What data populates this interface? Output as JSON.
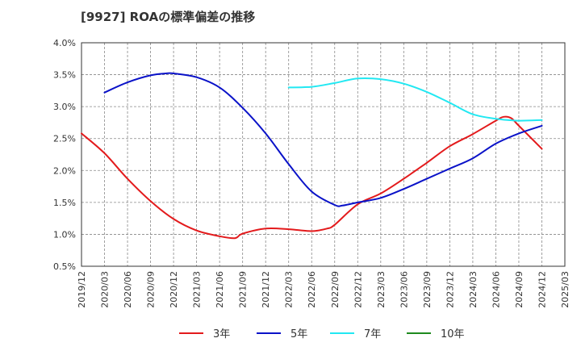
{
  "chart_data": {
    "type": "line",
    "title": "[9927]  ROAの標準偏差の推移",
    "xlabel": "",
    "ylabel": "",
    "ylim": [
      0.5,
      4.0
    ],
    "yticks": [
      "0.5%",
      "1.0%",
      "1.5%",
      "2.0%",
      "2.5%",
      "3.0%",
      "3.5%",
      "4.0%"
    ],
    "ytick_values": [
      0.5,
      1.0,
      1.5,
      2.0,
      2.5,
      3.0,
      3.5,
      4.0
    ],
    "xticks": [
      "2019/12",
      "2020/03",
      "2020/06",
      "2020/09",
      "2020/12",
      "2021/03",
      "2021/06",
      "2021/09",
      "2021/12",
      "2022/03",
      "2022/06",
      "2022/09",
      "2022/12",
      "2023/03",
      "2023/06",
      "2023/09",
      "2023/12",
      "2024/03",
      "2024/06",
      "2024/09",
      "2024/12",
      "2025/03"
    ],
    "grid": true,
    "legend_position": "bottom",
    "series": [
      {
        "name": "3年",
        "color": "#e31a1c",
        "points": [
          [
            "2019/12",
            2.58
          ],
          [
            "2020/03",
            2.27
          ],
          [
            "2020/06",
            1.87
          ],
          [
            "2020/09",
            1.52
          ],
          [
            "2020/12",
            1.24
          ],
          [
            "2021/03",
            1.06
          ],
          [
            "2021/06",
            0.97
          ],
          [
            "2021/08",
            0.94
          ],
          [
            "2021/09",
            1.01
          ],
          [
            "2021/12",
            1.09
          ],
          [
            "2022/03",
            1.08
          ],
          [
            "2022/06",
            1.05
          ],
          [
            "2022/08",
            1.09
          ],
          [
            "2022/09",
            1.15
          ],
          [
            "2022/12",
            1.47
          ],
          [
            "2023/03",
            1.64
          ],
          [
            "2023/06",
            1.87
          ],
          [
            "2023/09",
            2.12
          ],
          [
            "2023/12",
            2.38
          ],
          [
            "2024/03",
            2.57
          ],
          [
            "2024/06",
            2.78
          ],
          [
            "2024/07",
            2.84
          ],
          [
            "2024/08",
            2.82
          ],
          [
            "2024/09",
            2.7
          ],
          [
            "2024/12",
            2.34
          ]
        ]
      },
      {
        "name": "5年",
        "color": "#0a12c8",
        "points": [
          [
            "2020/03",
            3.22
          ],
          [
            "2020/06",
            3.38
          ],
          [
            "2020/09",
            3.49
          ],
          [
            "2020/11",
            3.52
          ],
          [
            "2020/12",
            3.52
          ],
          [
            "2021/03",
            3.46
          ],
          [
            "2021/06",
            3.3
          ],
          [
            "2021/09",
            2.98
          ],
          [
            "2021/12",
            2.58
          ],
          [
            "2022/03",
            2.1
          ],
          [
            "2022/06",
            1.67
          ],
          [
            "2022/09",
            1.46
          ],
          [
            "2022/10",
            1.45
          ],
          [
            "2022/12",
            1.5
          ],
          [
            "2023/03",
            1.57
          ],
          [
            "2023/06",
            1.71
          ],
          [
            "2023/09",
            1.87
          ],
          [
            "2023/12",
            2.03
          ],
          [
            "2024/03",
            2.19
          ],
          [
            "2024/06",
            2.42
          ],
          [
            "2024/09",
            2.58
          ],
          [
            "2024/12",
            2.7
          ]
        ]
      },
      {
        "name": "7年",
        "color": "#22e8f2",
        "points": [
          [
            "2022/03",
            3.3
          ],
          [
            "2022/06",
            3.31
          ],
          [
            "2022/09",
            3.37
          ],
          [
            "2022/12",
            3.44
          ],
          [
            "2023/03",
            3.43
          ],
          [
            "2023/06",
            3.36
          ],
          [
            "2023/09",
            3.23
          ],
          [
            "2023/12",
            3.06
          ],
          [
            "2024/03",
            2.88
          ],
          [
            "2024/06",
            2.81
          ],
          [
            "2024/09",
            2.78
          ],
          [
            "2024/12",
            2.79
          ]
        ]
      },
      {
        "name": "10年",
        "color": "#1e8a1e",
        "points": []
      }
    ]
  }
}
